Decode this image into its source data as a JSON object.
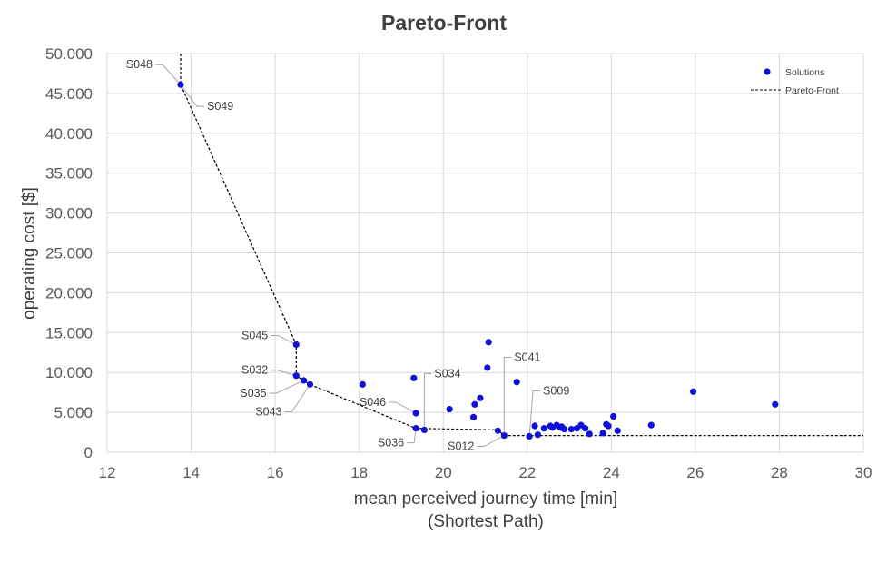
{
  "chart_data": {
    "type": "scatter",
    "title": "Pareto-Front",
    "xlabel": [
      "mean perceived journey time [min]",
      "(Shortest Path)"
    ],
    "ylabel": "operating cost [$]",
    "xlim": [
      12,
      30
    ],
    "ylim": [
      0,
      50000
    ],
    "xticks": [
      12,
      14,
      16,
      18,
      20,
      22,
      24,
      26,
      28,
      30
    ],
    "yticks": [
      0,
      5000,
      10000,
      15000,
      20000,
      25000,
      30000,
      35000,
      40000,
      45000,
      50000
    ],
    "xtick_labels": [
      "12",
      "14",
      "16",
      "18",
      "20",
      "22",
      "24",
      "26",
      "28",
      "30"
    ],
    "ytick_labels": [
      "0",
      "5.000",
      "10.000",
      "15.000",
      "20.000",
      "25.000",
      "30.000",
      "35.000",
      "40.000",
      "45.000",
      "50.000"
    ],
    "grid": true,
    "legend_position": "top-right",
    "colors": {
      "solutions": "#1010d8",
      "front": "#000000",
      "grid": "#d9d9d9",
      "title": "#404040"
    },
    "series": [
      {
        "name": "Solutions",
        "kind": "points",
        "points": [
          [
            13.75,
            46100
          ],
          [
            16.5,
            13500
          ],
          [
            16.5,
            9600
          ],
          [
            16.68,
            9000
          ],
          [
            16.83,
            8500
          ],
          [
            18.08,
            8500
          ],
          [
            19.3,
            9300
          ],
          [
            19.35,
            4900
          ],
          [
            19.35,
            3000
          ],
          [
            19.55,
            2800
          ],
          [
            20.15,
            5400
          ],
          [
            20.72,
            4400
          ],
          [
            20.75,
            6000
          ],
          [
            20.88,
            6800
          ],
          [
            21.05,
            10600
          ],
          [
            21.08,
            13800
          ],
          [
            21.75,
            8800
          ],
          [
            21.3,
            2700
          ],
          [
            21.45,
            2100
          ],
          [
            22.05,
            2000
          ],
          [
            22.18,
            3300
          ],
          [
            22.25,
            2200
          ],
          [
            22.4,
            3000
          ],
          [
            22.55,
            3300
          ],
          [
            22.6,
            3100
          ],
          [
            22.7,
            3400
          ],
          [
            22.78,
            3100
          ],
          [
            22.82,
            3200
          ],
          [
            22.88,
            2900
          ],
          [
            23.05,
            2900
          ],
          [
            23.18,
            3000
          ],
          [
            23.28,
            3400
          ],
          [
            23.38,
            3000
          ],
          [
            23.48,
            2300
          ],
          [
            23.8,
            2400
          ],
          [
            23.88,
            3500
          ],
          [
            23.93,
            3300
          ],
          [
            24.05,
            4500
          ],
          [
            24.15,
            2700
          ],
          [
            24.95,
            3400
          ],
          [
            25.95,
            7600
          ],
          [
            27.9,
            6000
          ]
        ]
      },
      {
        "name": "Pareto-Front",
        "kind": "dashed-line",
        "points": [
          [
            13.75,
            50000
          ],
          [
            13.75,
            46100
          ],
          [
            16.5,
            13500
          ],
          [
            16.5,
            9600
          ],
          [
            16.83,
            8500
          ],
          [
            19.35,
            3000
          ],
          [
            21.3,
            2800
          ],
          [
            21.45,
            2100
          ],
          [
            22.05,
            2100
          ],
          [
            30,
            2100
          ]
        ]
      }
    ],
    "annotations": [
      {
        "label": "S048",
        "x": 13.75,
        "y": 46100,
        "side": "left",
        "dx": -28,
        "dy": -22
      },
      {
        "label": "S049",
        "x": 13.75,
        "y": 46100,
        "side": "right",
        "dx": 26,
        "dy": 24
      },
      {
        "label": "S045",
        "x": 16.5,
        "y": 13500,
        "side": "left",
        "dx": -28,
        "dy": -10
      },
      {
        "label": "S032",
        "x": 16.5,
        "y": 9600,
        "side": "left",
        "dx": -28,
        "dy": -6
      },
      {
        "label": "S035",
        "x": 16.68,
        "y": 9000,
        "side": "left",
        "dx": -38,
        "dy": 14
      },
      {
        "label": "S043",
        "x": 16.83,
        "y": 8500,
        "side": "left",
        "dx": -28,
        "dy": 30
      },
      {
        "label": "S046",
        "x": 19.35,
        "y": 4900,
        "side": "left",
        "dx": -30,
        "dy": -12
      },
      {
        "label": "S034",
        "x": 19.55,
        "y": 2800,
        "side": "right",
        "dx": 8,
        "dy": -62
      },
      {
        "label": "S036",
        "x": 19.35,
        "y": 3000,
        "side": "left",
        "dx": -10,
        "dy": 16
      },
      {
        "label": "S041",
        "x": 21.45,
        "y": 2100,
        "side": "right",
        "dx": 8,
        "dy": -86
      },
      {
        "label": "S012",
        "x": 21.45,
        "y": 2100,
        "side": "left",
        "dx": -30,
        "dy": 12
      },
      {
        "label": "S009",
        "x": 22.05,
        "y": 2000,
        "side": "right",
        "dx": 12,
        "dy": -50
      }
    ]
  }
}
